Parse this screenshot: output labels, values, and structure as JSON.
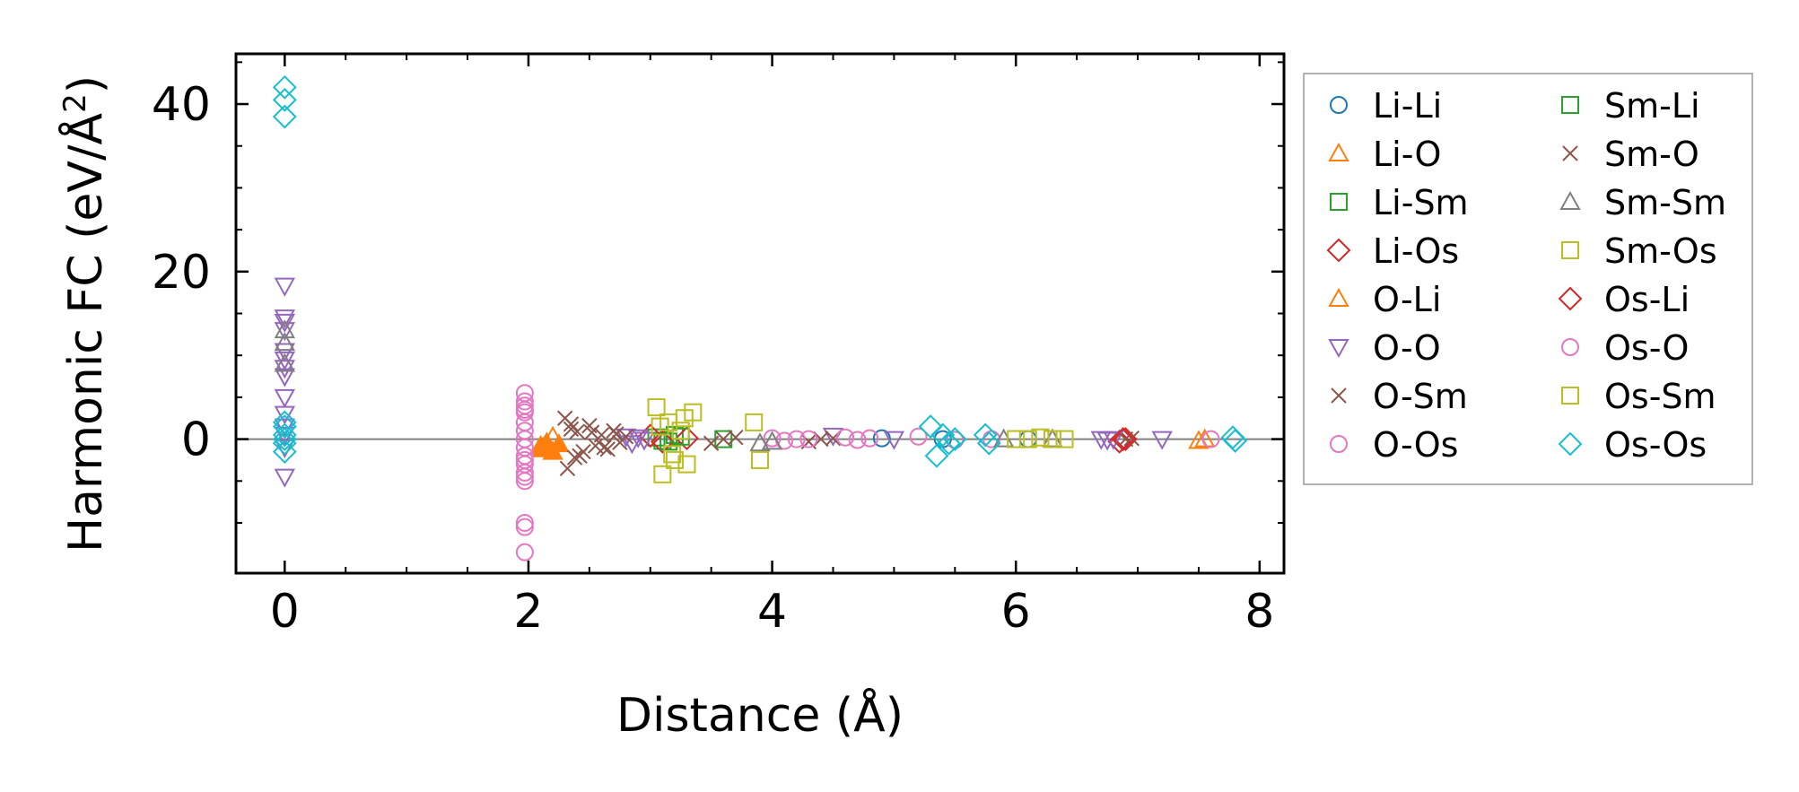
{
  "chart_data": {
    "type": "scatter",
    "title": "",
    "xlabel": "Distance (Å)",
    "ylabel_main": "Harmonic FC (eV/Å",
    "ylabel_sup": "2",
    "ylabel_close": ")",
    "xlim": [
      -0.4,
      8.2
    ],
    "ylim": [
      -16,
      46
    ],
    "x_ticks": [
      0,
      2,
      4,
      6,
      8
    ],
    "x_tick_labels": [
      "0",
      "2",
      "4",
      "6",
      "8"
    ],
    "y_ticks": [
      0,
      20,
      40
    ],
    "y_tick_labels": [
      "0",
      "20",
      "40"
    ],
    "legend_position": "outside-right",
    "zero_line": true,
    "series": [
      {
        "name": "Li-Li",
        "marker": "circle",
        "color": "#1f77b4",
        "filled": false,
        "x": [
          4.9,
          5.4,
          6.1
        ],
        "y": [
          0.1,
          0.0,
          0.0
        ]
      },
      {
        "name": "Li-O",
        "marker": "triangle-up",
        "color": "#ff7f0e",
        "filled": false,
        "x": [
          2.12,
          2.15,
          2.2,
          7.5,
          7.55
        ],
        "y": [
          -1.0,
          -0.6,
          0.3,
          -0.2,
          0.0
        ]
      },
      {
        "name": "Li-Sm",
        "marker": "square",
        "color": "#2ca02c",
        "filled": false,
        "x": [
          3.05,
          3.1,
          3.2,
          3.6
        ],
        "y": [
          0.2,
          -0.2,
          0.5,
          0.0
        ]
      },
      {
        "name": "Li-Os",
        "marker": "diamond",
        "color": "#d62728",
        "filled": false,
        "x": [
          3.0,
          3.1,
          3.3,
          6.85,
          6.9
        ],
        "y": [
          0.4,
          -0.3,
          0.1,
          -0.3,
          0.0
        ]
      },
      {
        "name": "O-Li",
        "marker": "triangle-up",
        "color": "#ff7f0e",
        "filled": true,
        "x": [
          2.1,
          2.12,
          2.15,
          2.2,
          2.25
        ],
        "y": [
          -0.8,
          -1.2,
          -0.4,
          -1.5,
          -0.6
        ]
      },
      {
        "name": "O-O",
        "marker": "triangle-down",
        "color": "#9467bd",
        "filled": false,
        "x": [
          0,
          0,
          0,
          0,
          0,
          0,
          0,
          0,
          0,
          0,
          0,
          0,
          0,
          0,
          2.8,
          2.85,
          2.9,
          2.95,
          4.5,
          5.0,
          6.7,
          6.75,
          6.8,
          7.2
        ],
        "y": [
          18.3,
          14.5,
          14.0,
          13.0,
          10.5,
          9.5,
          8.5,
          7.5,
          5.0,
          3.0,
          1.5,
          0.5,
          -1.0,
          -4.5,
          0.3,
          -0.5,
          0.2,
          -0.1,
          0.4,
          0.0,
          0.0,
          -0.1,
          0.0,
          0.0
        ]
      },
      {
        "name": "O-Sm",
        "marker": "x",
        "color": "#8c564b",
        "filled": false,
        "x": [
          2.3,
          2.32,
          2.35,
          2.38,
          2.4,
          2.45,
          2.5,
          2.55,
          2.6,
          2.65,
          2.7,
          2.75,
          2.8,
          3.5,
          3.6,
          3.7,
          4.3,
          4.4,
          4.5,
          6.9,
          6.95
        ],
        "y": [
          2.5,
          -3.5,
          1.8,
          -2.2,
          0.9,
          -1.5,
          1.6,
          -0.8,
          0.5,
          -1.2,
          1.0,
          -0.4,
          0.3,
          -0.5,
          0.0,
          0.2,
          -0.3,
          0.0,
          0.1,
          0.0,
          0.1
        ]
      },
      {
        "name": "O-Os",
        "marker": "circle",
        "color": "#e377c2",
        "filled": false,
        "x": [
          1.97,
          1.97,
          1.97,
          1.97,
          1.97,
          1.97,
          1.97,
          1.97,
          1.97,
          1.97,
          1.97,
          1.97,
          1.97,
          1.97,
          1.97,
          4.0,
          4.1,
          4.2,
          4.6,
          4.7,
          5.2,
          5.8,
          7.6
        ],
        "y": [
          5.5,
          4.5,
          4.0,
          3.2,
          2.0,
          1.0,
          0.0,
          -1.0,
          -2.0,
          -3.0,
          -4.0,
          -5.0,
          -10.0,
          -10.5,
          -13.5,
          0.1,
          -0.2,
          0.0,
          0.2,
          -0.1,
          0.3,
          0.0,
          0.0
        ]
      },
      {
        "name": "Sm-Li",
        "marker": "square",
        "color": "#2ca02c",
        "filled": false,
        "x": [
          3.15,
          3.25
        ],
        "y": [
          -0.3,
          0.3
        ]
      },
      {
        "name": "Sm-O",
        "marker": "x",
        "color": "#8c564b",
        "filled": false,
        "x": [
          2.35,
          2.42,
          2.52,
          2.62,
          2.72
        ],
        "y": [
          1.2,
          -2.0,
          0.8,
          -1.0,
          0.6
        ]
      },
      {
        "name": "Sm-Sm",
        "marker": "triangle-up",
        "color": "#7f7f7f",
        "filled": false,
        "x": [
          0,
          0,
          0,
          3.9,
          4.0,
          5.9,
          6.3
        ],
        "y": [
          13.0,
          11.5,
          9.0,
          -0.5,
          -0.3,
          0.0,
          0.0
        ]
      },
      {
        "name": "Sm-Os",
        "marker": "square",
        "color": "#bcbd22",
        "filled": false,
        "x": [
          3.05,
          3.1,
          3.15,
          3.2,
          3.25,
          3.3,
          3.35,
          3.85,
          3.9,
          6.0,
          6.2,
          6.4
        ],
        "y": [
          3.8,
          -4.2,
          2.0,
          -2.5,
          1.0,
          -3.0,
          3.2,
          2.0,
          -2.5,
          0.0,
          0.2,
          0.0
        ]
      },
      {
        "name": "Os-Li",
        "marker": "diamond",
        "color": "#d62728",
        "filled": false,
        "x": [
          6.88
        ],
        "y": [
          0.0
        ]
      },
      {
        "name": "Os-O",
        "marker": "circle",
        "color": "#e377c2",
        "filled": false,
        "x": [
          1.97,
          1.97,
          1.97,
          4.3,
          4.8,
          5.5
        ],
        "y": [
          3.5,
          -2.5,
          -4.5,
          0.0,
          0.1,
          -0.1
        ]
      },
      {
        "name": "Os-Sm",
        "marker": "square",
        "color": "#bcbd22",
        "filled": false,
        "x": [
          3.08,
          3.18,
          3.28,
          6.1,
          6.3
        ],
        "y": [
          1.5,
          -1.8,
          2.5,
          0.0,
          0.0
        ]
      },
      {
        "name": "Os-Os",
        "marker": "diamond",
        "color": "#17becf",
        "filled": false,
        "x": [
          0,
          0,
          0,
          0,
          0,
          0,
          0,
          0,
          0,
          5.3,
          5.35,
          5.4,
          5.45,
          5.5,
          5.75,
          5.78,
          7.78,
          7.8
        ],
        "y": [
          42.0,
          40.5,
          38.5,
          2.0,
          1.5,
          0.5,
          0.0,
          -0.5,
          -1.5,
          1.5,
          -2.0,
          0.5,
          -0.5,
          0.0,
          0.5,
          -0.5,
          0.2,
          -0.2
        ]
      }
    ]
  }
}
